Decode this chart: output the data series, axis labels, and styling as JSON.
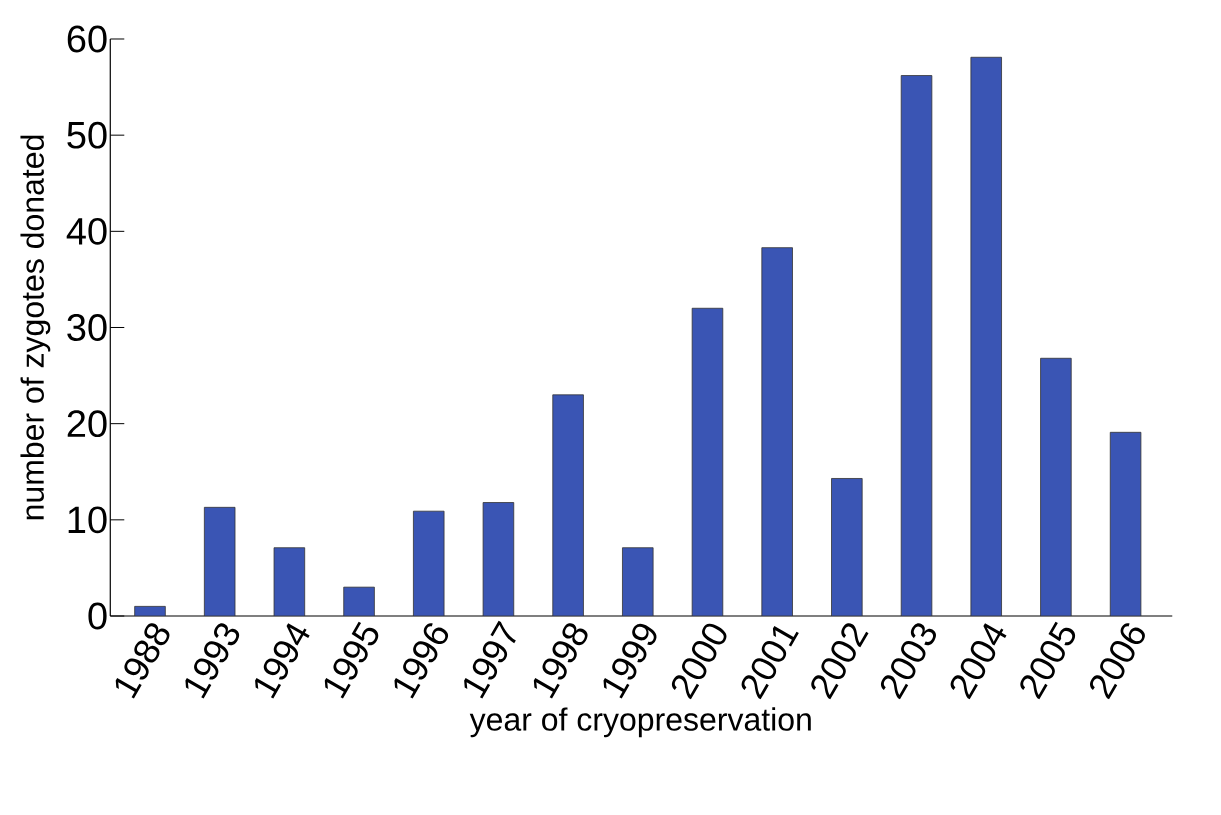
{
  "chart_data": {
    "type": "bar",
    "xlabel": "year of cryopreservation",
    "ylabel": "number of zygotes donated",
    "categories": [
      "1988",
      "1993",
      "1994",
      "1995",
      "1996",
      "1997",
      "1998",
      "1999",
      "2000",
      "2001",
      "2002",
      "2003",
      "2004",
      "2005",
      "2006"
    ],
    "values": [
      1,
      11.3,
      7.1,
      3,
      10.9,
      11.8,
      23,
      7.1,
      32,
      38.3,
      14.3,
      56.2,
      58.1,
      26.8,
      19.1
    ],
    "color": "#3a55b4",
    "ylim": [
      0,
      60
    ],
    "yticks": [
      0,
      10,
      20,
      30,
      40,
      50,
      60
    ],
    "grid": false
  }
}
